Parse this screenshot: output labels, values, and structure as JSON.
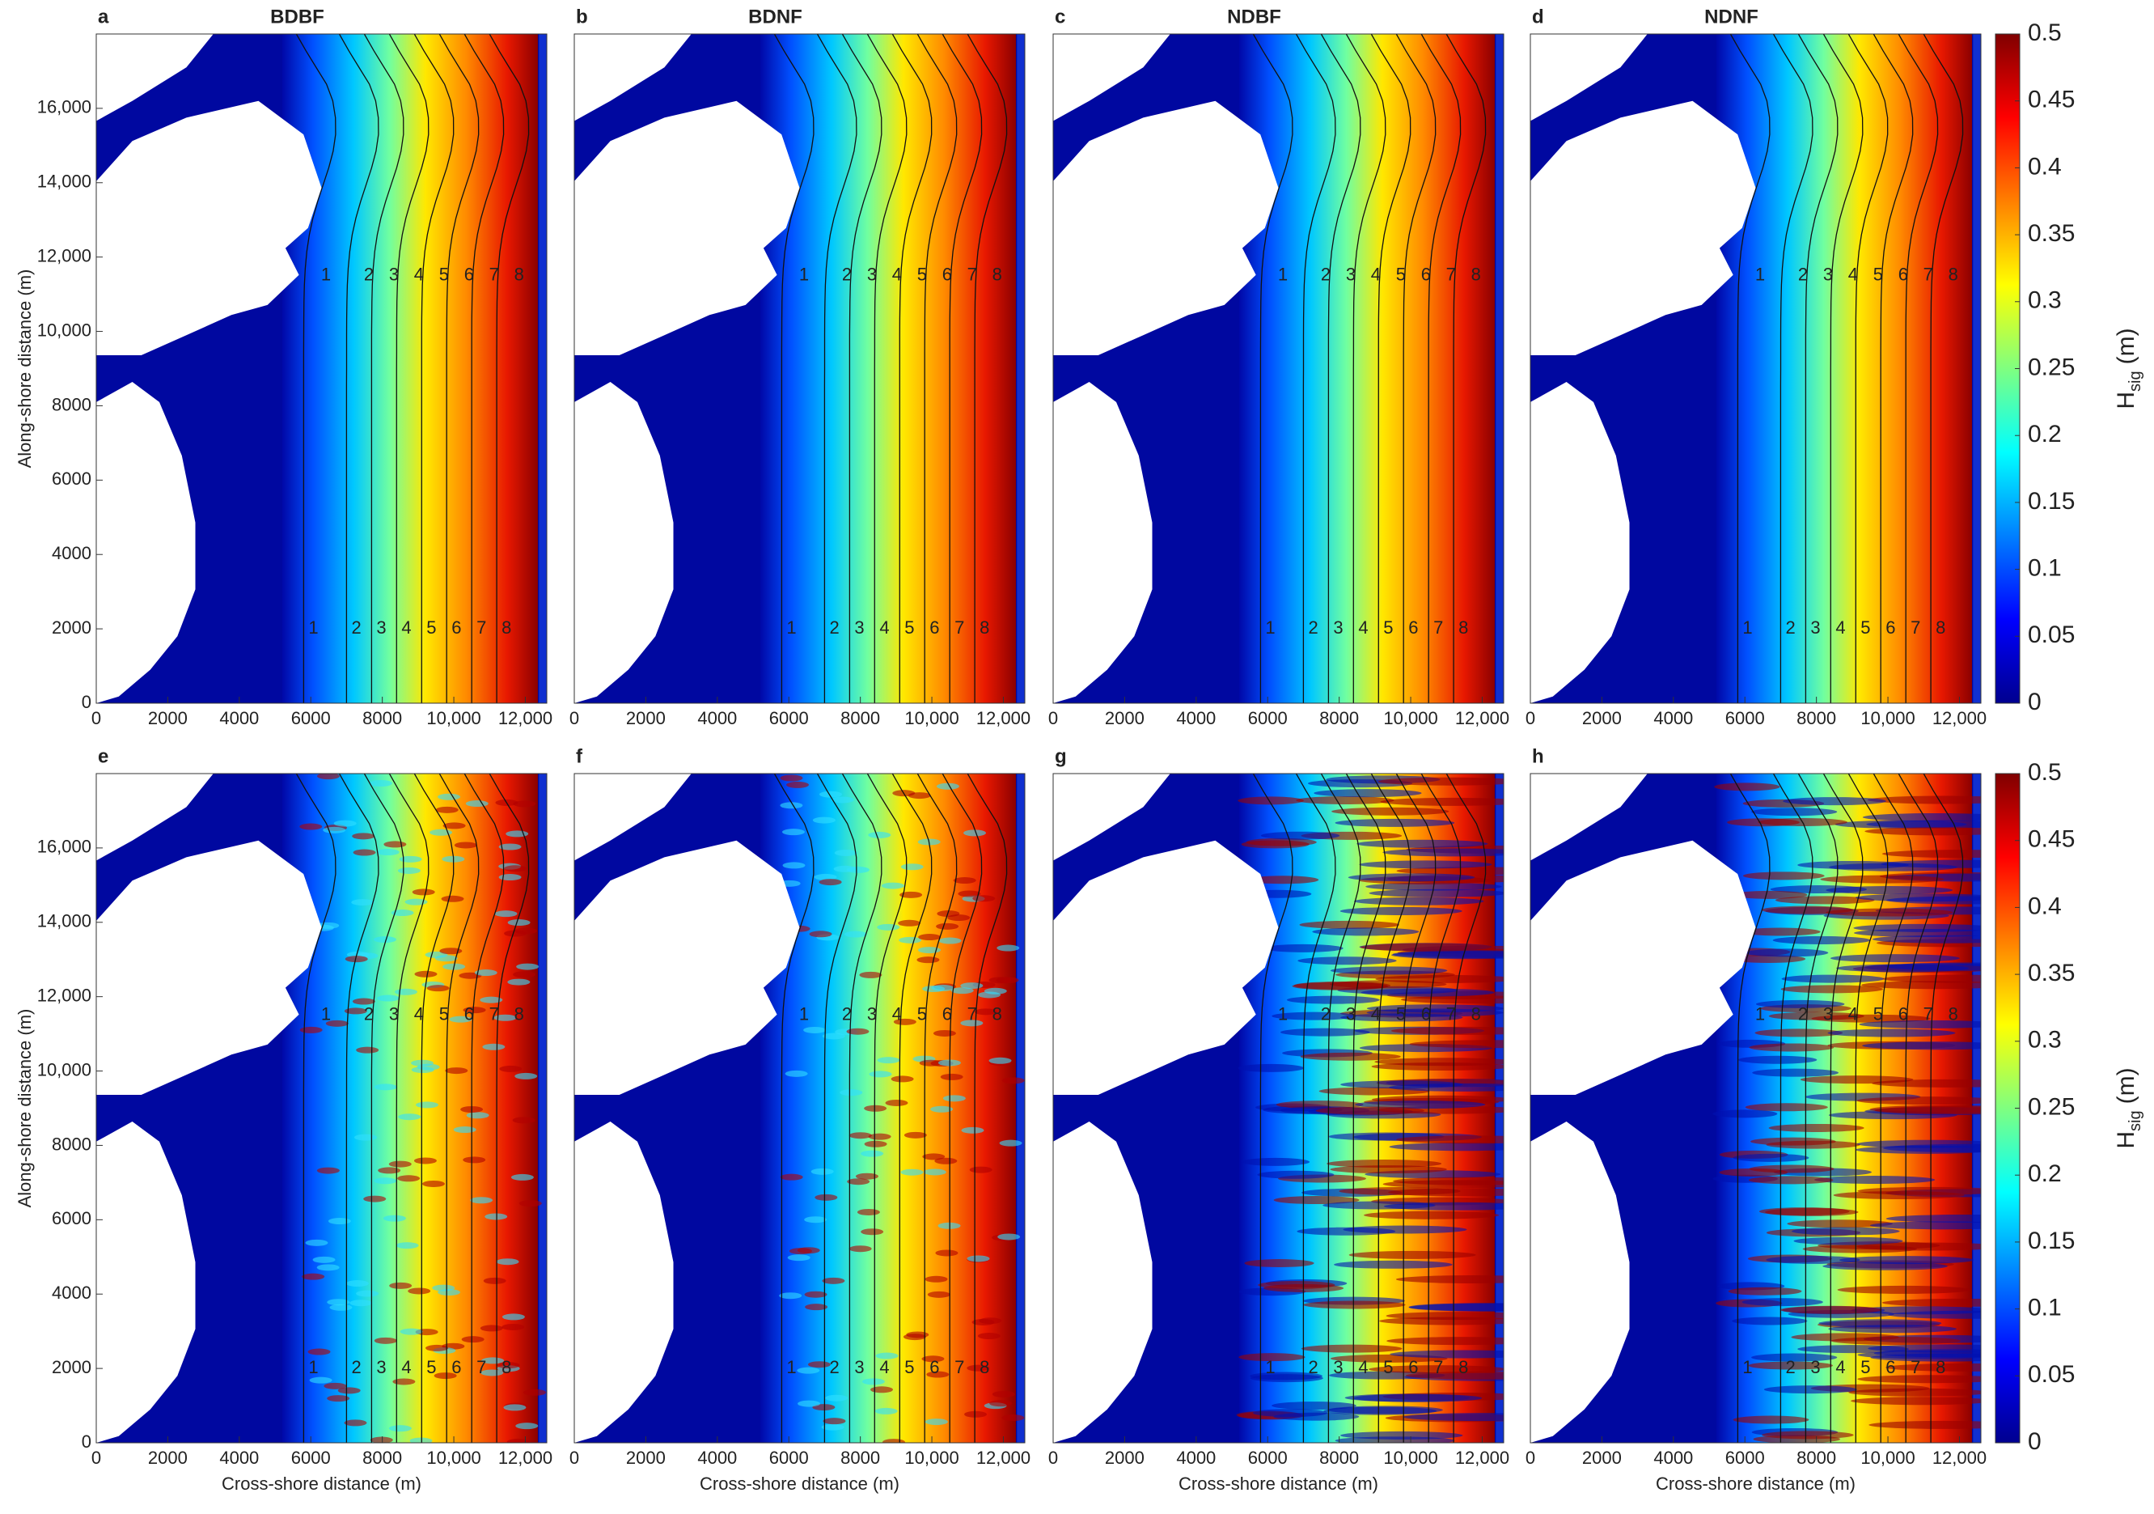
{
  "chart_data": [
    {
      "type": "heatmap",
      "panel": "a",
      "title": "BDBF",
      "ylabel": "Along-shore distance (m)",
      "xlim": [
        0,
        12600
      ],
      "ylim": [
        0,
        18000
      ],
      "xticks": [
        0,
        2000,
        4000,
        6000,
        8000,
        {
          "value": 10000,
          "label": "10,000"
        },
        {
          "value": 12000,
          "label": "12,000"
        }
      ],
      "yticks": [
        0,
        2000,
        4000,
        6000,
        8000,
        {
          "value": 10000,
          "label": "10,000"
        },
        {
          "value": 12000,
          "label": "12,000"
        },
        {
          "value": 14000,
          "label": "14,000"
        },
        {
          "value": 16000,
          "label": "16,000"
        }
      ],
      "contour_levels": [
        1,
        2,
        3,
        4,
        5,
        6,
        7,
        8
      ],
      "texture": "smooth"
    },
    {
      "type": "heatmap",
      "panel": "b",
      "title": "BDNF",
      "xlim": [
        0,
        12600
      ],
      "ylim": [
        0,
        18000
      ],
      "xticks": [
        0,
        2000,
        4000,
        6000,
        8000,
        {
          "value": 10000,
          "label": "10,000"
        },
        {
          "value": 12000,
          "label": "12,000"
        }
      ],
      "contour_levels": [
        1,
        2,
        3,
        4,
        5,
        6,
        7,
        8
      ],
      "texture": "smooth"
    },
    {
      "type": "heatmap",
      "panel": "c",
      "title": "NDBF",
      "xlim": [
        0,
        12600
      ],
      "ylim": [
        0,
        18000
      ],
      "xticks": [
        0,
        2000,
        4000,
        6000,
        8000,
        {
          "value": 10000,
          "label": "10,000"
        },
        {
          "value": 12000,
          "label": "12,000"
        }
      ],
      "contour_levels": [
        1,
        2,
        3,
        4,
        5,
        6,
        7,
        8
      ],
      "texture": "smooth"
    },
    {
      "type": "heatmap",
      "panel": "d",
      "title": "NDNF",
      "xlim": [
        0,
        12600
      ],
      "ylim": [
        0,
        18000
      ],
      "xticks": [
        0,
        2000,
        4000,
        6000,
        8000,
        {
          "value": 10000,
          "label": "10,000"
        },
        {
          "value": 12000,
          "label": "12,000"
        }
      ],
      "contour_levels": [
        1,
        2,
        3,
        4,
        5,
        6,
        7,
        8
      ],
      "texture": "smooth",
      "colorbar": {
        "lim": [
          0,
          0.5
        ],
        "ticks": [
          0,
          0.05,
          0.1,
          0.15,
          0.2,
          0.25,
          0.3,
          0.35,
          0.4,
          0.45,
          0.5
        ],
        "label": "H",
        "label_sub": "sig",
        "label_unit": "(m)"
      }
    },
    {
      "type": "heatmap",
      "panel": "e",
      "xlabel": "Cross-shore distance (m)",
      "ylabel": "Along-shore distance (m)",
      "xlim": [
        0,
        12600
      ],
      "ylim": [
        0,
        18000
      ],
      "xticks": [
        0,
        2000,
        4000,
        6000,
        8000,
        {
          "value": 10000,
          "label": "10,000"
        },
        {
          "value": 12000,
          "label": "12,000"
        }
      ],
      "yticks": [
        0,
        2000,
        4000,
        6000,
        8000,
        {
          "value": 10000,
          "label": "10,000"
        },
        {
          "value": 12000,
          "label": "12,000"
        },
        {
          "value": 14000,
          "label": "14,000"
        },
        {
          "value": 16000,
          "label": "16,000"
        }
      ],
      "contour_levels": [
        1,
        2,
        3,
        4,
        5,
        6,
        7,
        8
      ],
      "texture": "speckled"
    },
    {
      "type": "heatmap",
      "panel": "f",
      "xlabel": "Cross-shore distance (m)",
      "xlim": [
        0,
        12600
      ],
      "ylim": [
        0,
        18000
      ],
      "xticks": [
        0,
        2000,
        4000,
        6000,
        8000,
        {
          "value": 10000,
          "label": "10,000"
        },
        {
          "value": 12000,
          "label": "12,000"
        }
      ],
      "contour_levels": [
        1,
        2,
        3,
        4,
        5,
        6,
        7,
        8
      ],
      "texture": "speckled"
    },
    {
      "type": "heatmap",
      "panel": "g",
      "xlabel": "Cross-shore distance (m)",
      "xlim": [
        0,
        12600
      ],
      "ylim": [
        0,
        18000
      ],
      "xticks": [
        0,
        2000,
        4000,
        6000,
        8000,
        {
          "value": 10000,
          "label": "10,000"
        },
        {
          "value": 12000,
          "label": "12,000"
        }
      ],
      "contour_levels": [
        1,
        2,
        3,
        4,
        5,
        6,
        7,
        8
      ],
      "texture": "streaked"
    },
    {
      "type": "heatmap",
      "panel": "h",
      "xlabel": "Cross-shore distance (m)",
      "xlim": [
        0,
        12600
      ],
      "ylim": [
        0,
        18000
      ],
      "xticks": [
        0,
        2000,
        4000,
        6000,
        8000,
        {
          "value": 10000,
          "label": "10,000"
        },
        {
          "value": 12000,
          "label": "12,000"
        }
      ],
      "contour_levels": [
        1,
        2,
        3,
        4,
        5,
        6,
        7,
        8
      ],
      "texture": "streaked",
      "colorbar": {
        "lim": [
          0,
          0.5
        ],
        "ticks": [
          0,
          0.05,
          0.1,
          0.15,
          0.2,
          0.25,
          0.3,
          0.35,
          0.4,
          0.45,
          0.5
        ],
        "label": "H",
        "label_sub": "sig",
        "label_unit": "(m)"
      }
    }
  ]
}
